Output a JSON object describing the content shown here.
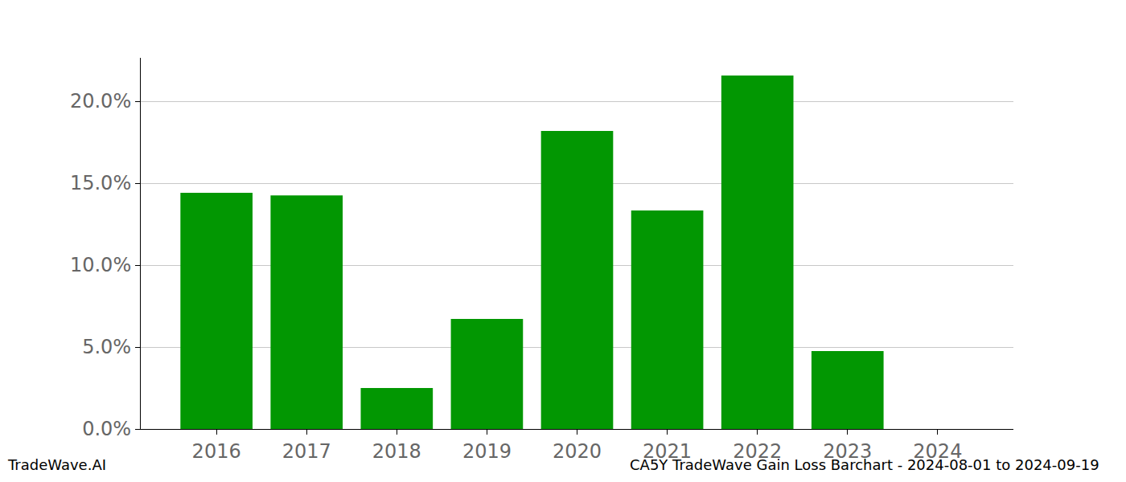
{
  "chart_data": {
    "type": "bar",
    "title": "CA5Y TradeWave Gain Loss Barchart - 2024-08-01 to 2024-09-19",
    "annotations": [
      "TradeWave.AI"
    ],
    "categories": [
      "2016",
      "2017",
      "2018",
      "2019",
      "2020",
      "2021",
      "2022",
      "2023",
      "2024"
    ],
    "values": [
      14.41,
      14.26,
      2.5,
      6.72,
      18.19,
      13.33,
      21.57,
      4.75,
      0
    ],
    "color": "#029702",
    "ylim": [
      0,
      22.65
    ],
    "yticks": [
      {
        "value": 0,
        "label": "0.0%"
      },
      {
        "value": 5,
        "label": "5.0%"
      },
      {
        "value": 10,
        "label": "10.0%"
      },
      {
        "value": 15,
        "label": "15.0%"
      },
      {
        "value": 20,
        "label": "20.0%"
      }
    ],
    "grid": true
  }
}
